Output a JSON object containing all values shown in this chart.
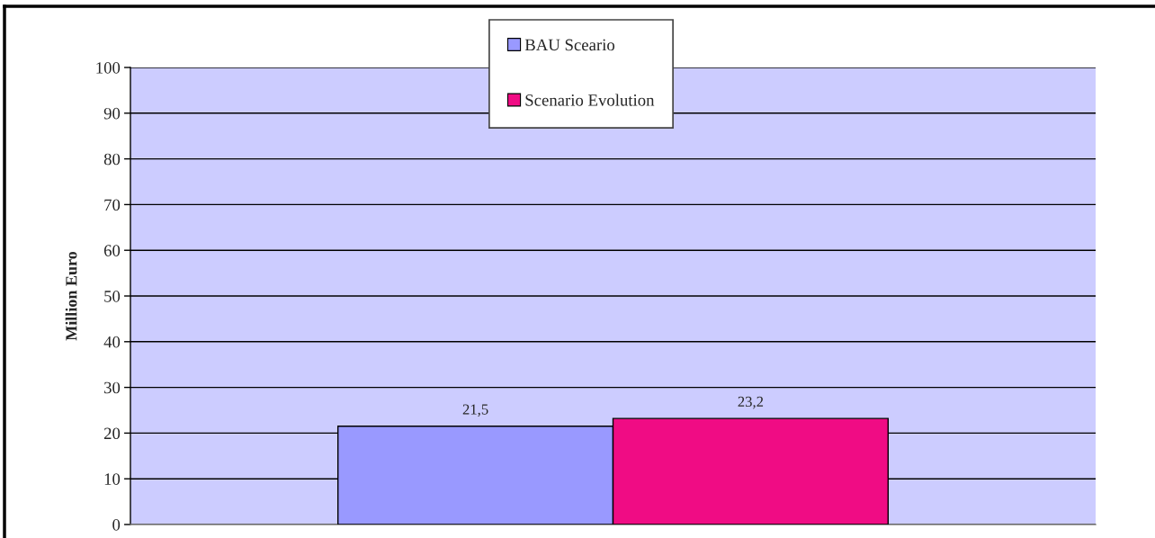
{
  "chart_data": {
    "type": "bar",
    "categories": [
      null
    ],
    "ylabel": "Million Euro",
    "series": [
      {
        "name": "BAU Sceario",
        "color": "#9999ff",
        "values": [
          21.5
        ],
        "value_labels": [
          "21,5"
        ]
      },
      {
        "name": "Scenario Evolution",
        "color": "#f00c84",
        "values": [
          23.2
        ],
        "value_labels": [
          "23,2"
        ]
      }
    ],
    "ylim": [
      0,
      100
    ],
    "yticks": [
      0,
      10,
      20,
      30,
      40,
      50,
      60,
      70,
      80,
      90,
      100
    ],
    "grid": "y",
    "legend": "top",
    "tick_labels": "y"
  }
}
